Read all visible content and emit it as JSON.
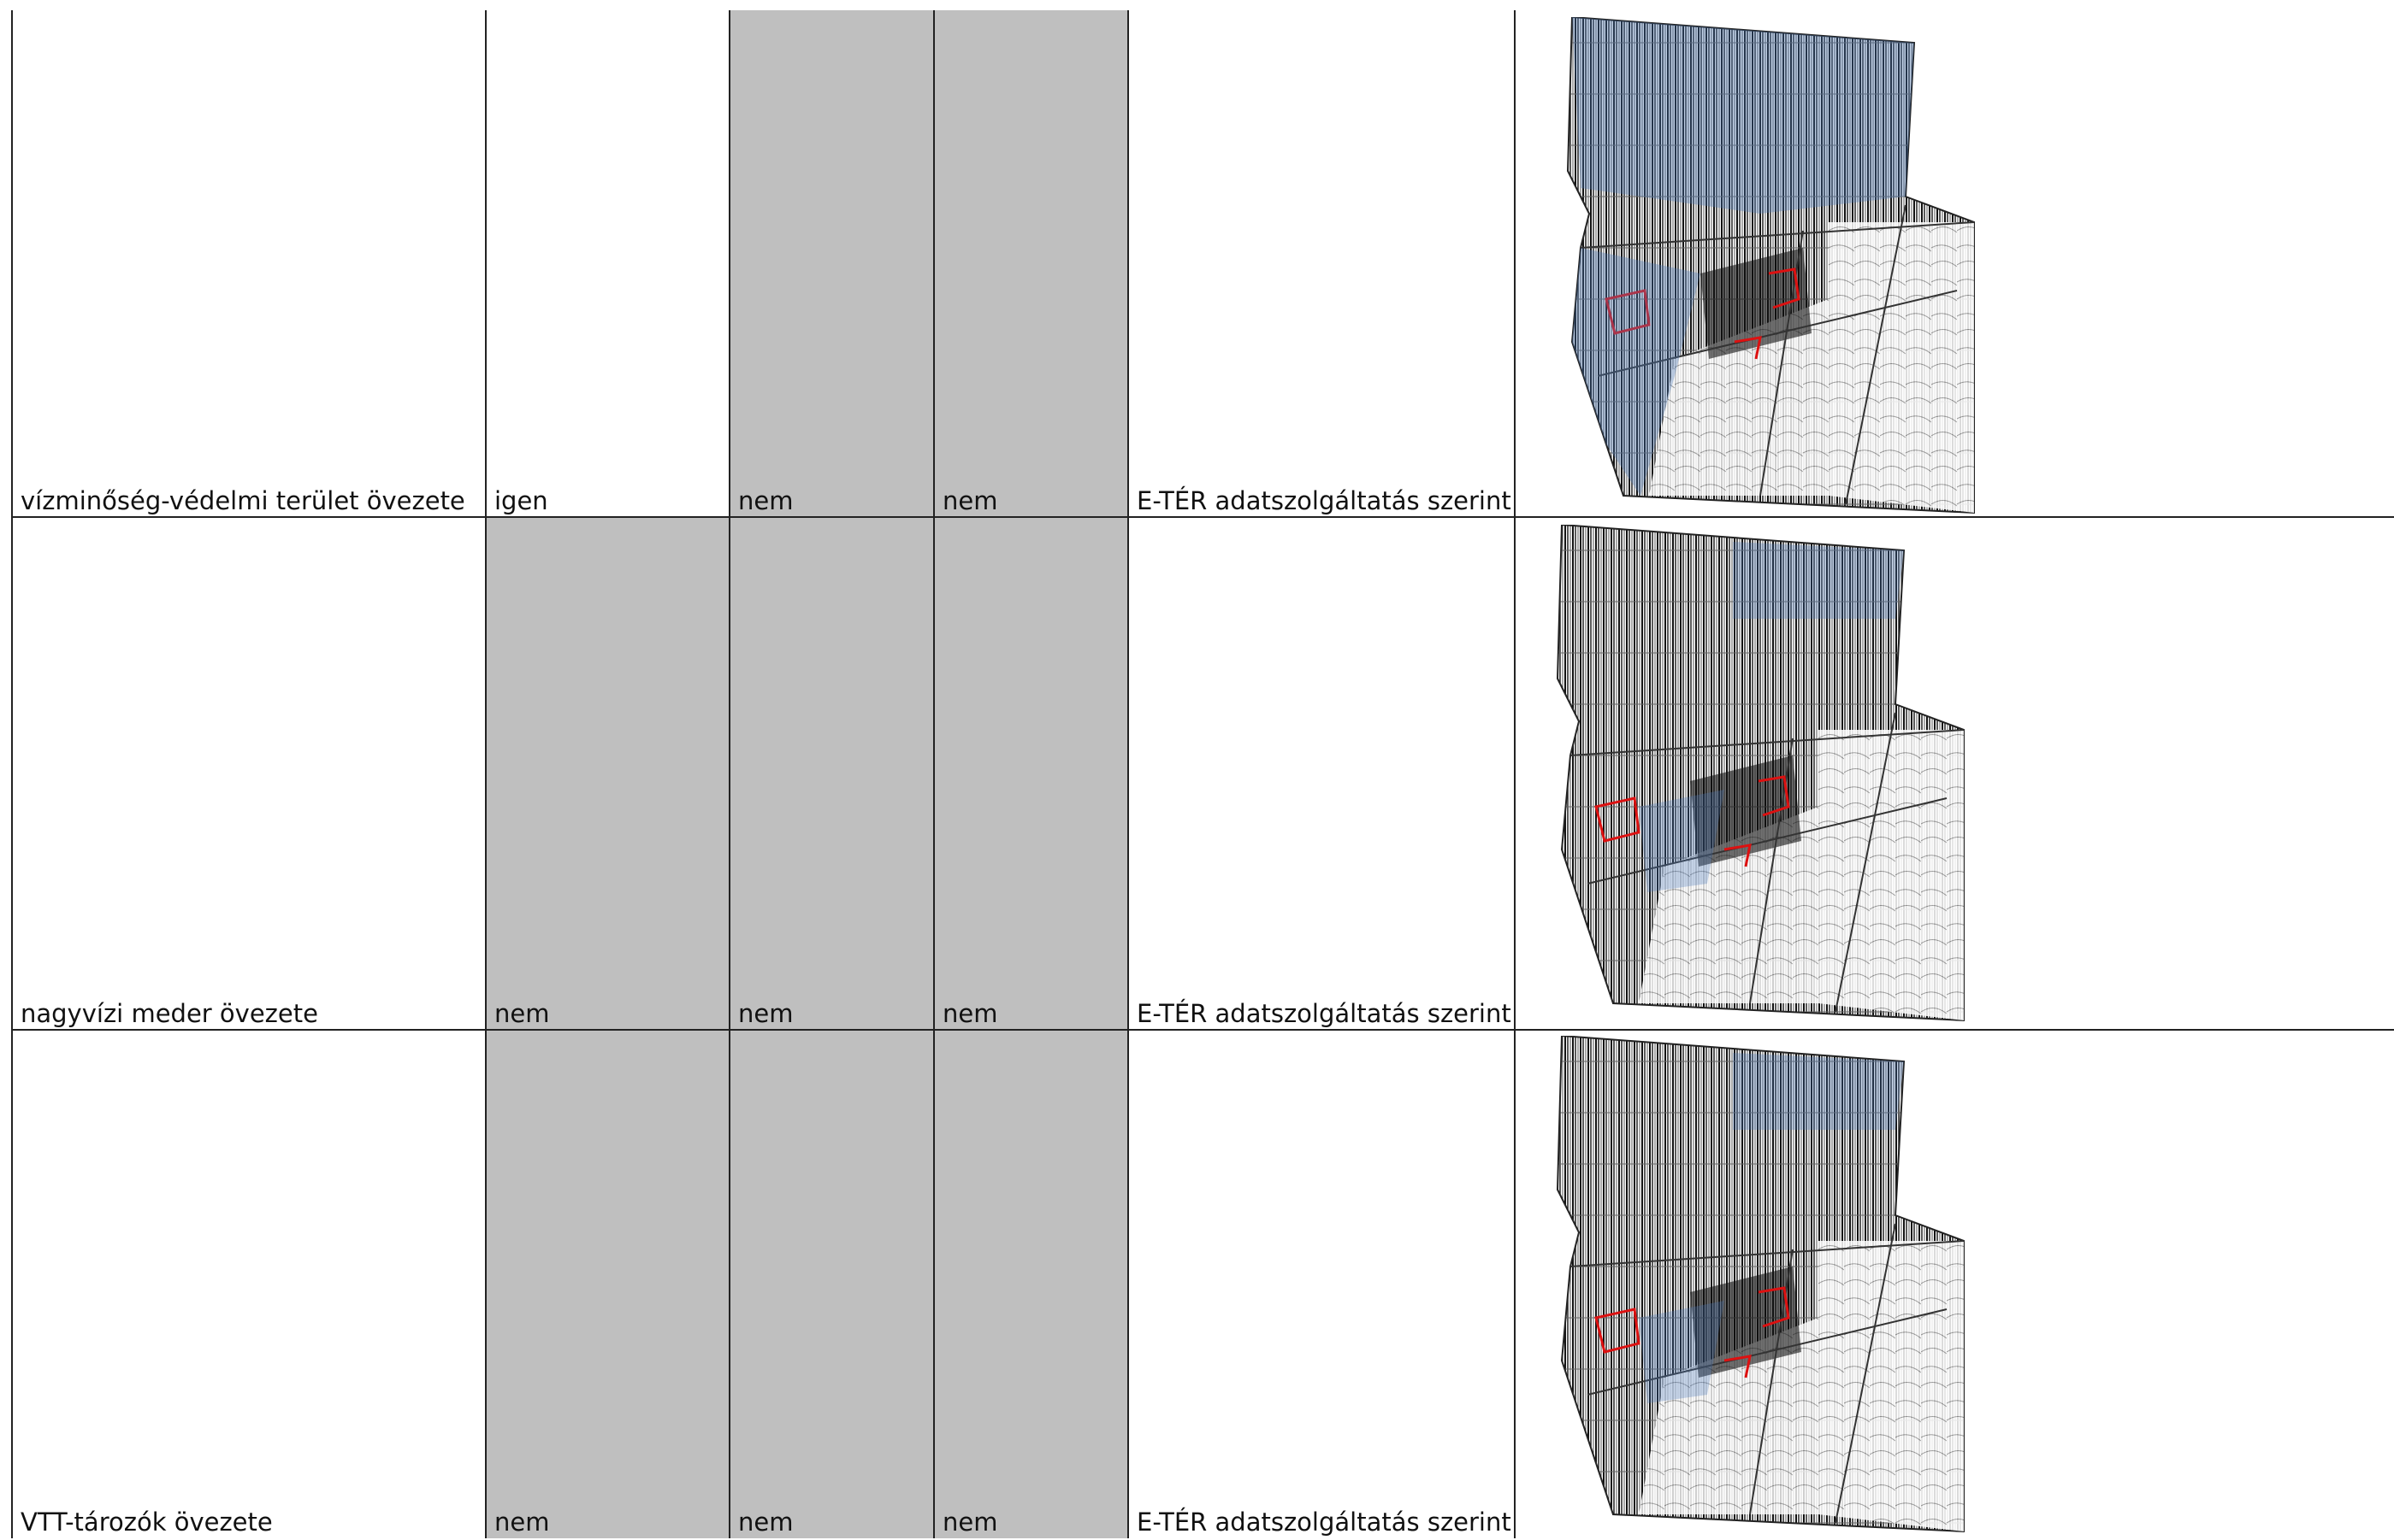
{
  "table": {
    "rows": [
      [
        "vízminőség-védelmi terület övezete",
        "igen",
        "nem",
        "nem",
        "E-TÉR adatszolgáltatás szerint"
      ],
      [
        "nagyvízi meder övezete",
        "nem",
        "nem",
        "nem",
        "E-TÉR adatszolgáltatás szerint"
      ],
      [
        "VTT-tározók övezete",
        "nem",
        "nem",
        "nem",
        "E-TÉR adatszolgáltatás szerint"
      ]
    ]
  }
}
